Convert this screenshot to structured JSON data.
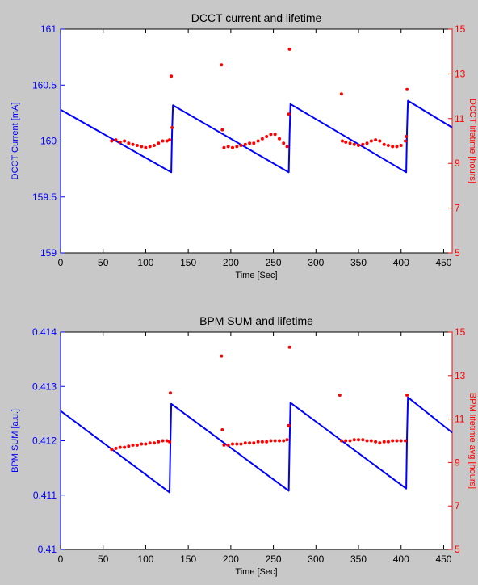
{
  "figure": {
    "background": "#c8c8c8",
    "left_color": "#0000ff",
    "right_color": "#ff0000"
  },
  "chart_data": [
    {
      "type": "line",
      "title": "DCCT current and lifetime",
      "xlabel": "Time [Sec]",
      "ylabel": "DCCT Current [mA]",
      "y2label": "DCCT lifetime [hours]",
      "xlim": [
        0,
        460
      ],
      "ylim": [
        159,
        161
      ],
      "y2lim": [
        5,
        15
      ],
      "xticks": [
        0,
        50,
        100,
        150,
        200,
        250,
        300,
        350,
        400,
        450
      ],
      "yticks": [
        159,
        159.5,
        160,
        160.5,
        161
      ],
      "ytick_labels": [
        "159",
        "159.5",
        "160",
        "160.5",
        "161"
      ],
      "y2ticks": [
        5,
        7,
        9,
        11,
        13,
        15
      ],
      "grid": false,
      "series": [
        {
          "axis": "left",
          "style": "line",
          "color": "#0000ff",
          "points": [
            [
              0,
              160.28
            ],
            [
              130,
              159.72
            ],
            [
              131,
              160.08
            ],
            [
              132,
              160.32
            ],
            [
              268,
              159.72
            ],
            [
              269,
              160.05
            ],
            [
              270,
              160.33
            ],
            [
              406,
              159.72
            ],
            [
              407,
              160.1
            ],
            [
              408,
              160.36
            ],
            [
              460,
              160.12
            ]
          ]
        },
        {
          "axis": "right",
          "style": "dots",
          "color": "#ff0000",
          "points": [
            [
              60,
              10
            ],
            [
              65,
              10.05
            ],
            [
              70,
              9.95
            ],
            [
              75,
              10
            ],
            [
              80,
              9.9
            ],
            [
              85,
              9.85
            ],
            [
              90,
              9.8
            ],
            [
              95,
              9.75
            ],
            [
              100,
              9.7
            ],
            [
              105,
              9.75
            ],
            [
              110,
              9.8
            ],
            [
              115,
              9.9
            ],
            [
              120,
              10
            ],
            [
              125,
              10
            ],
            [
              128,
              10.05
            ],
            [
              130,
              12.9
            ],
            [
              131,
              10.6
            ],
            [
              189,
              13.4
            ],
            [
              190,
              10.5
            ],
            [
              192,
              9.7
            ],
            [
              197,
              9.75
            ],
            [
              202,
              9.7
            ],
            [
              207,
              9.75
            ],
            [
              212,
              9.8
            ],
            [
              217,
              9.85
            ],
            [
              222,
              9.9
            ],
            [
              227,
              9.9
            ],
            [
              232,
              10
            ],
            [
              237,
              10.1
            ],
            [
              242,
              10.2
            ],
            [
              247,
              10.3
            ],
            [
              252,
              10.3
            ],
            [
              257,
              10.1
            ],
            [
              262,
              9.9
            ],
            [
              266,
              9.75
            ],
            [
              268,
              11.2
            ],
            [
              269,
              14.1
            ],
            [
              330,
              12.1
            ],
            [
              331,
              10
            ],
            [
              335,
              9.95
            ],
            [
              340,
              9.9
            ],
            [
              345,
              9.85
            ],
            [
              350,
              9.8
            ],
            [
              355,
              9.85
            ],
            [
              360,
              9.9
            ],
            [
              365,
              10
            ],
            [
              370,
              10.05
            ],
            [
              375,
              10
            ],
            [
              380,
              9.85
            ],
            [
              385,
              9.8
            ],
            [
              390,
              9.75
            ],
            [
              395,
              9.75
            ],
            [
              400,
              9.8
            ],
            [
              405,
              10
            ],
            [
              406,
              10.2
            ],
            [
              407,
              12.3
            ]
          ]
        }
      ]
    },
    {
      "type": "line",
      "title": "BPM SUM and lifetime",
      "xlabel": "Time [Sec]",
      "ylabel": "BPM SUM [a.u.]",
      "y2label": "BPM lifetime avg [hours]",
      "xlim": [
        0,
        460
      ],
      "ylim": [
        0.41,
        0.414
      ],
      "y2lim": [
        5,
        15
      ],
      "xticks": [
        0,
        50,
        100,
        150,
        200,
        250,
        300,
        350,
        400,
        450
      ],
      "yticks": [
        0.41,
        0.411,
        0.412,
        0.413,
        0.414
      ],
      "ytick_labels": [
        "0.41",
        "0.411",
        "0.412",
        "0.413",
        "0.414"
      ],
      "y2ticks": [
        5,
        7,
        9,
        11,
        13,
        15
      ],
      "grid": false,
      "series": [
        {
          "axis": "left",
          "style": "line",
          "color": "#0000ff",
          "points": [
            [
              0,
              0.41255
            ],
            [
              128,
              0.41105
            ],
            [
              129,
              0.4119
            ],
            [
              130,
              0.41268
            ],
            [
              268,
              0.41108
            ],
            [
              269,
              0.4119
            ],
            [
              270,
              0.4127
            ],
            [
              406,
              0.41112
            ],
            [
              407,
              0.4121
            ],
            [
              408,
              0.4128
            ],
            [
              460,
              0.41215
            ]
          ]
        },
        {
          "axis": "right",
          "style": "dots",
          "color": "#ff0000",
          "points": [
            [
              60,
              9.6
            ],
            [
              65,
              9.65
            ],
            [
              70,
              9.7
            ],
            [
              75,
              9.7
            ],
            [
              80,
              9.75
            ],
            [
              85,
              9.8
            ],
            [
              90,
              9.8
            ],
            [
              95,
              9.85
            ],
            [
              100,
              9.85
            ],
            [
              105,
              9.9
            ],
            [
              110,
              9.9
            ],
            [
              115,
              9.95
            ],
            [
              120,
              10
            ],
            [
              125,
              10
            ],
            [
              128,
              9.95
            ],
            [
              129,
              12.2
            ],
            [
              189,
              13.9
            ],
            [
              190,
              10.5
            ],
            [
              192,
              9.8
            ],
            [
              197,
              9.8
            ],
            [
              202,
              9.85
            ],
            [
              207,
              9.85
            ],
            [
              212,
              9.85
            ],
            [
              217,
              9.9
            ],
            [
              222,
              9.9
            ],
            [
              227,
              9.9
            ],
            [
              232,
              9.95
            ],
            [
              237,
              9.95
            ],
            [
              242,
              9.95
            ],
            [
              247,
              10
            ],
            [
              252,
              10
            ],
            [
              257,
              10
            ],
            [
              262,
              10
            ],
            [
              266,
              10.05
            ],
            [
              268,
              10.7
            ],
            [
              269,
              14.3
            ],
            [
              328,
              12.1
            ],
            [
              330,
              10
            ],
            [
              335,
              10
            ],
            [
              340,
              10
            ],
            [
              345,
              10.05
            ],
            [
              350,
              10.05
            ],
            [
              355,
              10.05
            ],
            [
              360,
              10
            ],
            [
              365,
              10
            ],
            [
              370,
              9.95
            ],
            [
              375,
              9.9
            ],
            [
              380,
              9.95
            ],
            [
              385,
              9.95
            ],
            [
              390,
              10
            ],
            [
              395,
              10
            ],
            [
              400,
              10
            ],
            [
              405,
              10
            ],
            [
              407,
              12.1
            ]
          ]
        }
      ]
    }
  ]
}
